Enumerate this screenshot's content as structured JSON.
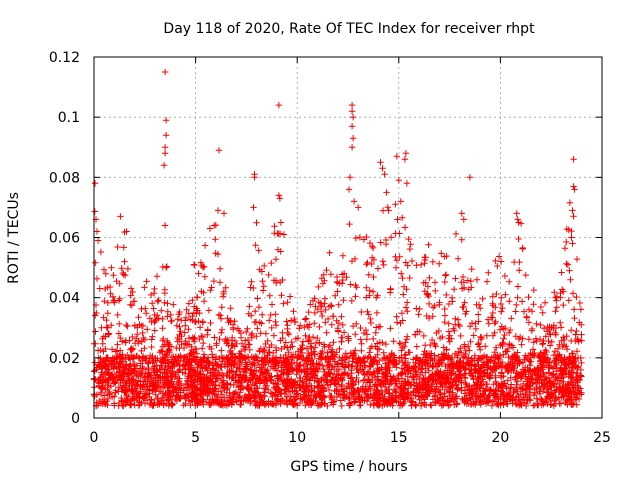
{
  "chart_data": {
    "type": "scatter",
    "title": "Day 118 of 2020, Rate Of TEC Index for receiver rhpt",
    "xlabel": "GPS time / hours",
    "ylabel": "ROTI / TECUs",
    "xlim": [
      0,
      25
    ],
    "ylim": [
      0,
      0.12
    ],
    "xticks": [
      0,
      5,
      10,
      15,
      20,
      25
    ],
    "xtick_labels": [
      "0",
      "5",
      "10",
      "15",
      "20",
      "25"
    ],
    "yticks": [
      0,
      0.02,
      0.04,
      0.06,
      0.08,
      0.1,
      0.12
    ],
    "ytick_labels": [
      "0",
      "0.02",
      "0.04",
      "0.06",
      "0.08",
      "0.1",
      "0.12"
    ],
    "grid": true,
    "marker": "+",
    "color": "#ff0000",
    "x_range_hours": [
      0,
      24
    ],
    "dense_baseline": {
      "typical_min": 0.004,
      "typical_max": 0.02
    },
    "envelope": [
      {
        "x": 0.0,
        "y": 0.078
      },
      {
        "x": 0.5,
        "y": 0.05
      },
      {
        "x": 1.0,
        "y": 0.055
      },
      {
        "x": 1.5,
        "y": 0.062
      },
      {
        "x": 2.0,
        "y": 0.04
      },
      {
        "x": 2.5,
        "y": 0.045
      },
      {
        "x": 3.0,
        "y": 0.05
      },
      {
        "x": 3.5,
        "y": 0.053
      },
      {
        "x": 4.0,
        "y": 0.04
      },
      {
        "x": 4.5,
        "y": 0.035
      },
      {
        "x": 5.0,
        "y": 0.055
      },
      {
        "x": 5.5,
        "y": 0.06
      },
      {
        "x": 6.0,
        "y": 0.069
      },
      {
        "x": 6.5,
        "y": 0.045
      },
      {
        "x": 7.0,
        "y": 0.03
      },
      {
        "x": 7.5,
        "y": 0.03
      },
      {
        "x": 8.0,
        "y": 0.068
      },
      {
        "x": 8.5,
        "y": 0.045
      },
      {
        "x": 9.0,
        "y": 0.074
      },
      {
        "x": 9.5,
        "y": 0.045
      },
      {
        "x": 10.0,
        "y": 0.035
      },
      {
        "x": 10.5,
        "y": 0.035
      },
      {
        "x": 11.0,
        "y": 0.045
      },
      {
        "x": 11.5,
        "y": 0.055
      },
      {
        "x": 12.0,
        "y": 0.055
      },
      {
        "x": 12.5,
        "y": 0.072
      },
      {
        "x": 13.0,
        "y": 0.065
      },
      {
        "x": 13.5,
        "y": 0.06
      },
      {
        "x": 14.0,
        "y": 0.08
      },
      {
        "x": 14.5,
        "y": 0.07
      },
      {
        "x": 15.0,
        "y": 0.075
      },
      {
        "x": 15.5,
        "y": 0.06
      },
      {
        "x": 16.0,
        "y": 0.05
      },
      {
        "x": 16.5,
        "y": 0.06
      },
      {
        "x": 17.0,
        "y": 0.055
      },
      {
        "x": 17.5,
        "y": 0.055
      },
      {
        "x": 18.0,
        "y": 0.065
      },
      {
        "x": 18.5,
        "y": 0.055
      },
      {
        "x": 19.0,
        "y": 0.045
      },
      {
        "x": 19.5,
        "y": 0.05
      },
      {
        "x": 20.0,
        "y": 0.055
      },
      {
        "x": 20.5,
        "y": 0.045
      },
      {
        "x": 21.0,
        "y": 0.068
      },
      {
        "x": 21.5,
        "y": 0.045
      },
      {
        "x": 22.0,
        "y": 0.04
      },
      {
        "x": 22.5,
        "y": 0.04
      },
      {
        "x": 23.0,
        "y": 0.05
      },
      {
        "x": 23.5,
        "y": 0.076
      },
      {
        "x": 24.0,
        "y": 0.035
      }
    ],
    "notable_points": [
      {
        "x": 0.05,
        "y": 0.078
      },
      {
        "x": 0.1,
        "y": 0.066
      },
      {
        "x": 0.15,
        "y": 0.062
      },
      {
        "x": 0.2,
        "y": 0.059
      },
      {
        "x": 1.3,
        "y": 0.067
      },
      {
        "x": 1.6,
        "y": 0.062
      },
      {
        "x": 3.5,
        "y": 0.115
      },
      {
        "x": 3.55,
        "y": 0.099
      },
      {
        "x": 3.55,
        "y": 0.094
      },
      {
        "x": 3.5,
        "y": 0.09
      },
      {
        "x": 3.5,
        "y": 0.088
      },
      {
        "x": 3.45,
        "y": 0.084
      },
      {
        "x": 3.5,
        "y": 0.064
      },
      {
        "x": 6.15,
        "y": 0.089
      },
      {
        "x": 6.1,
        "y": 0.069
      },
      {
        "x": 6.4,
        "y": 0.068
      },
      {
        "x": 7.9,
        "y": 0.081
      },
      {
        "x": 7.9,
        "y": 0.08
      },
      {
        "x": 7.85,
        "y": 0.07
      },
      {
        "x": 9.1,
        "y": 0.104
      },
      {
        "x": 9.1,
        "y": 0.074
      },
      {
        "x": 9.15,
        "y": 0.073
      },
      {
        "x": 9.2,
        "y": 0.065
      },
      {
        "x": 9.35,
        "y": 0.061
      },
      {
        "x": 12.7,
        "y": 0.104
      },
      {
        "x": 12.7,
        "y": 0.102
      },
      {
        "x": 12.75,
        "y": 0.1
      },
      {
        "x": 12.7,
        "y": 0.097
      },
      {
        "x": 12.75,
        "y": 0.093
      },
      {
        "x": 12.7,
        "y": 0.09
      },
      {
        "x": 12.6,
        "y": 0.08
      },
      {
        "x": 12.55,
        "y": 0.076
      },
      {
        "x": 12.8,
        "y": 0.072
      },
      {
        "x": 13.0,
        "y": 0.07
      },
      {
        "x": 14.1,
        "y": 0.085
      },
      {
        "x": 14.2,
        "y": 0.083
      },
      {
        "x": 14.3,
        "y": 0.081
      },
      {
        "x": 14.4,
        "y": 0.075
      },
      {
        "x": 14.5,
        "y": 0.069
      },
      {
        "x": 14.9,
        "y": 0.087
      },
      {
        "x": 15.35,
        "y": 0.088
      },
      {
        "x": 15.3,
        "y": 0.086
      },
      {
        "x": 15.4,
        "y": 0.078
      },
      {
        "x": 15.0,
        "y": 0.079
      },
      {
        "x": 15.1,
        "y": 0.072
      },
      {
        "x": 18.5,
        "y": 0.08
      },
      {
        "x": 18.1,
        "y": 0.068
      },
      {
        "x": 18.2,
        "y": 0.066
      },
      {
        "x": 20.8,
        "y": 0.068
      },
      {
        "x": 20.85,
        "y": 0.066
      },
      {
        "x": 20.9,
        "y": 0.065
      },
      {
        "x": 23.6,
        "y": 0.086
      },
      {
        "x": 23.6,
        "y": 0.077
      },
      {
        "x": 23.65,
        "y": 0.076
      },
      {
        "x": 23.55,
        "y": 0.069
      },
      {
        "x": 23.5,
        "y": 0.06
      },
      {
        "x": 23.55,
        "y": 0.058
      },
      {
        "x": 23.4,
        "y": 0.049
      }
    ]
  }
}
